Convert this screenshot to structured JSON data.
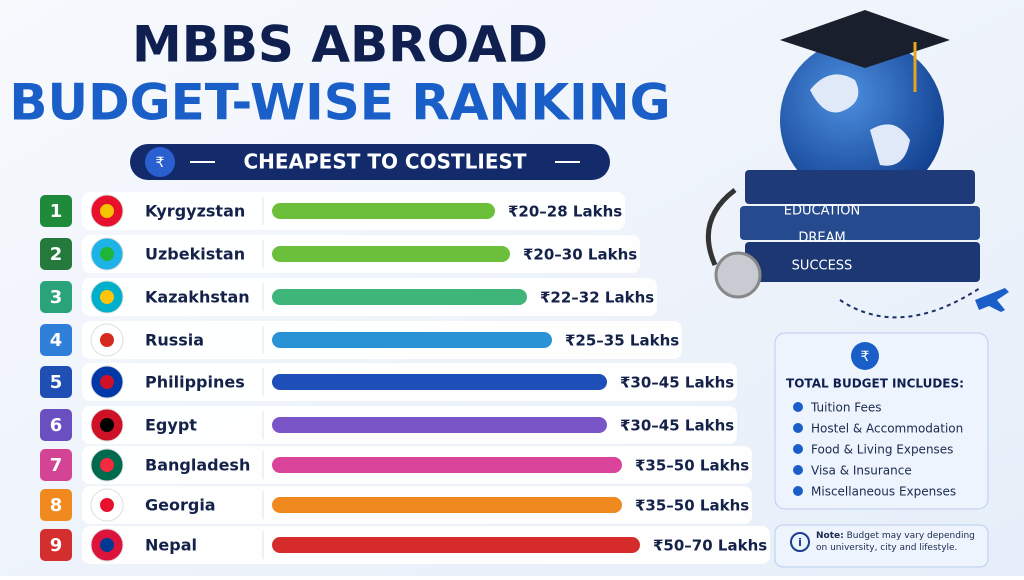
{
  "header": {
    "title_line1": "MBBS ABROAD",
    "title_line2": "BUDGET-WISE RANKING",
    "subtitle": "CHEAPEST TO COSTLIEST"
  },
  "rankings": [
    {
      "rank": 1,
      "country": "Kyrgyzstan",
      "budget": "₹20–28 Lakhs"
    },
    {
      "rank": 2,
      "country": "Uzbekistan",
      "budget": "₹20–30 Lakhs"
    },
    {
      "rank": 3,
      "country": "Kazakhstan",
      "budget": "₹22–32 Lakhs"
    },
    {
      "rank": 4,
      "country": "Russia",
      "budget": "₹25–35 Lakhs"
    },
    {
      "rank": 5,
      "country": "Philippines",
      "budget": "₹30–45 Lakhs"
    },
    {
      "rank": 6,
      "country": "Egypt",
      "budget": "₹30–45 Lakhs"
    },
    {
      "rank": 7,
      "country": "Bangladesh",
      "budget": "₹35–50 Lakhs"
    },
    {
      "rank": 8,
      "country": "Georgia",
      "budget": "₹35–50 Lakhs"
    },
    {
      "rank": 9,
      "country": "Nepal",
      "budget": "₹50–70 Lakhs"
    }
  ],
  "illustration": {
    "books": [
      "EDUCATION",
      "DREAM",
      "SUCCESS"
    ]
  },
  "budget_box": {
    "title": "TOTAL BUDGET INCLUDES:",
    "items": [
      "Tuition Fees",
      "Hostel & Accommodation",
      "Food & Living Expenses",
      "Visa & Insurance",
      "Miscellaneous Expenses"
    ]
  },
  "note": {
    "label": "Note:",
    "text": "Budget may vary depending on university, city and lifestyle."
  }
}
